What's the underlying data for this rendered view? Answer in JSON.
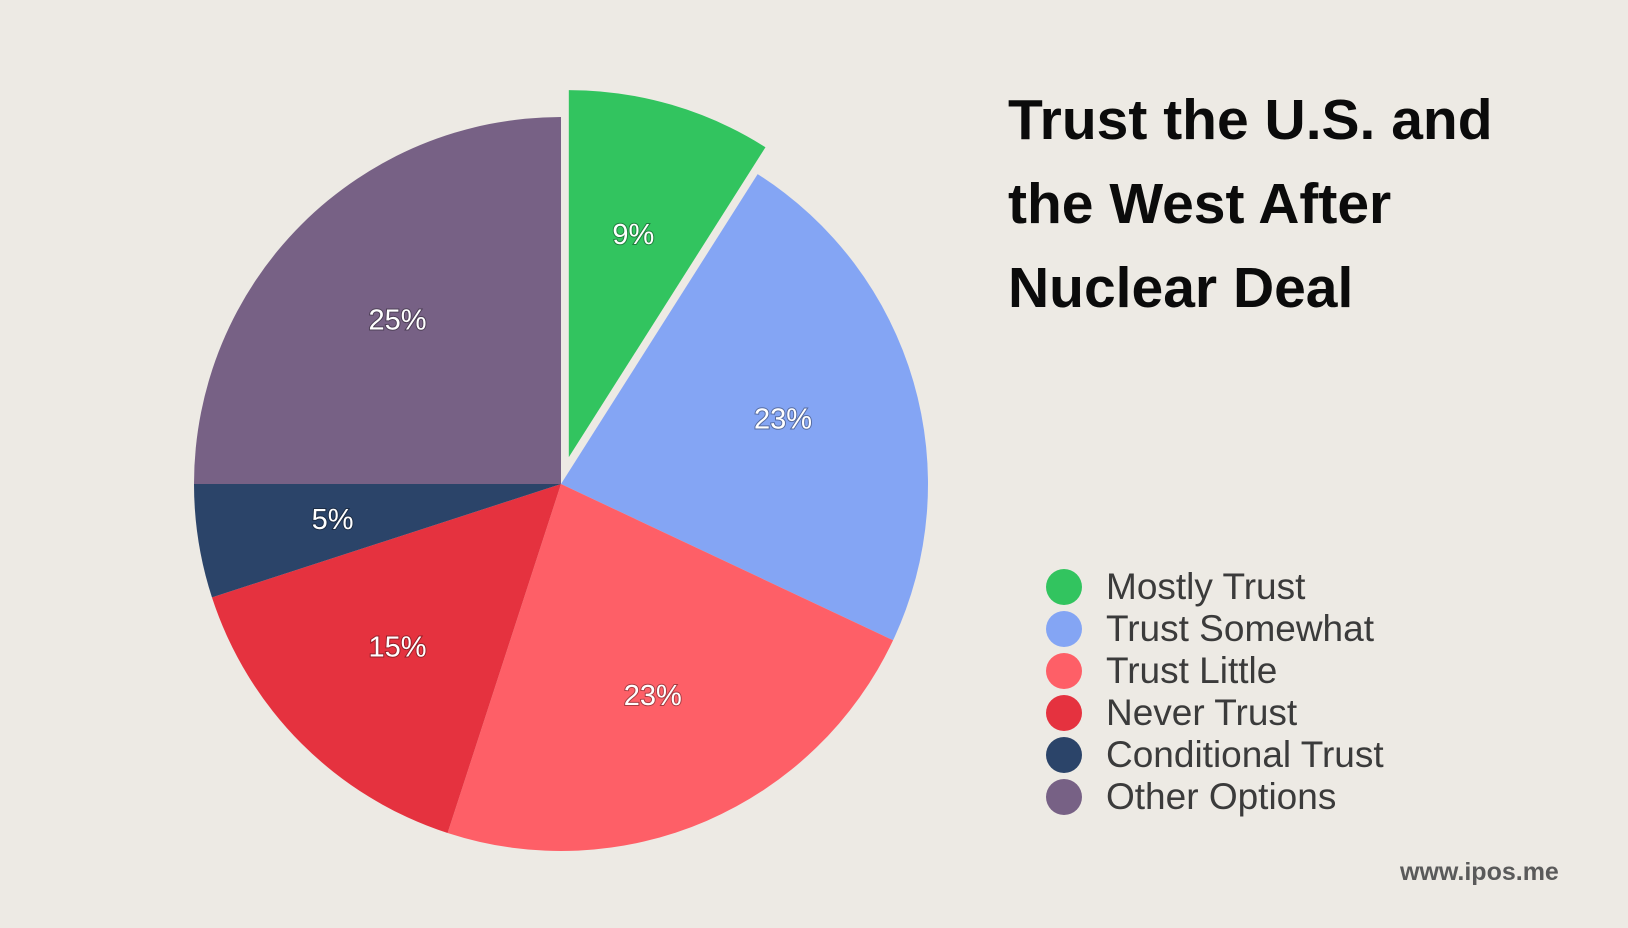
{
  "chart_data": {
    "type": "pie",
    "title": "Trust the U.S. and the West After Nuclear Deal",
    "title_lines": [
      "Trust the U.S. and",
      "the West After",
      "Nuclear Deal"
    ],
    "legend_position": "right",
    "exploded_slice": "Mostly Trust",
    "slices": [
      {
        "label": "Mostly Trust",
        "value": 9,
        "display": "9%",
        "color": "#32c45f"
      },
      {
        "label": "Trust Somewhat",
        "value": 23,
        "display": "23%",
        "color": "#84a5f4"
      },
      {
        "label": "Trust Little",
        "value": 23,
        "display": "23%",
        "color": "#fe5f67"
      },
      {
        "label": "Never Trust",
        "value": 15,
        "display": "15%",
        "color": "#e5323f"
      },
      {
        "label": "Conditional Trust",
        "value": 5,
        "display": "5%",
        "color": "#2b4469"
      },
      {
        "label": "Other Options",
        "value": 25,
        "display": "25%",
        "color": "#776185"
      }
    ]
  },
  "footer": {
    "source": "www.ipos.me"
  }
}
